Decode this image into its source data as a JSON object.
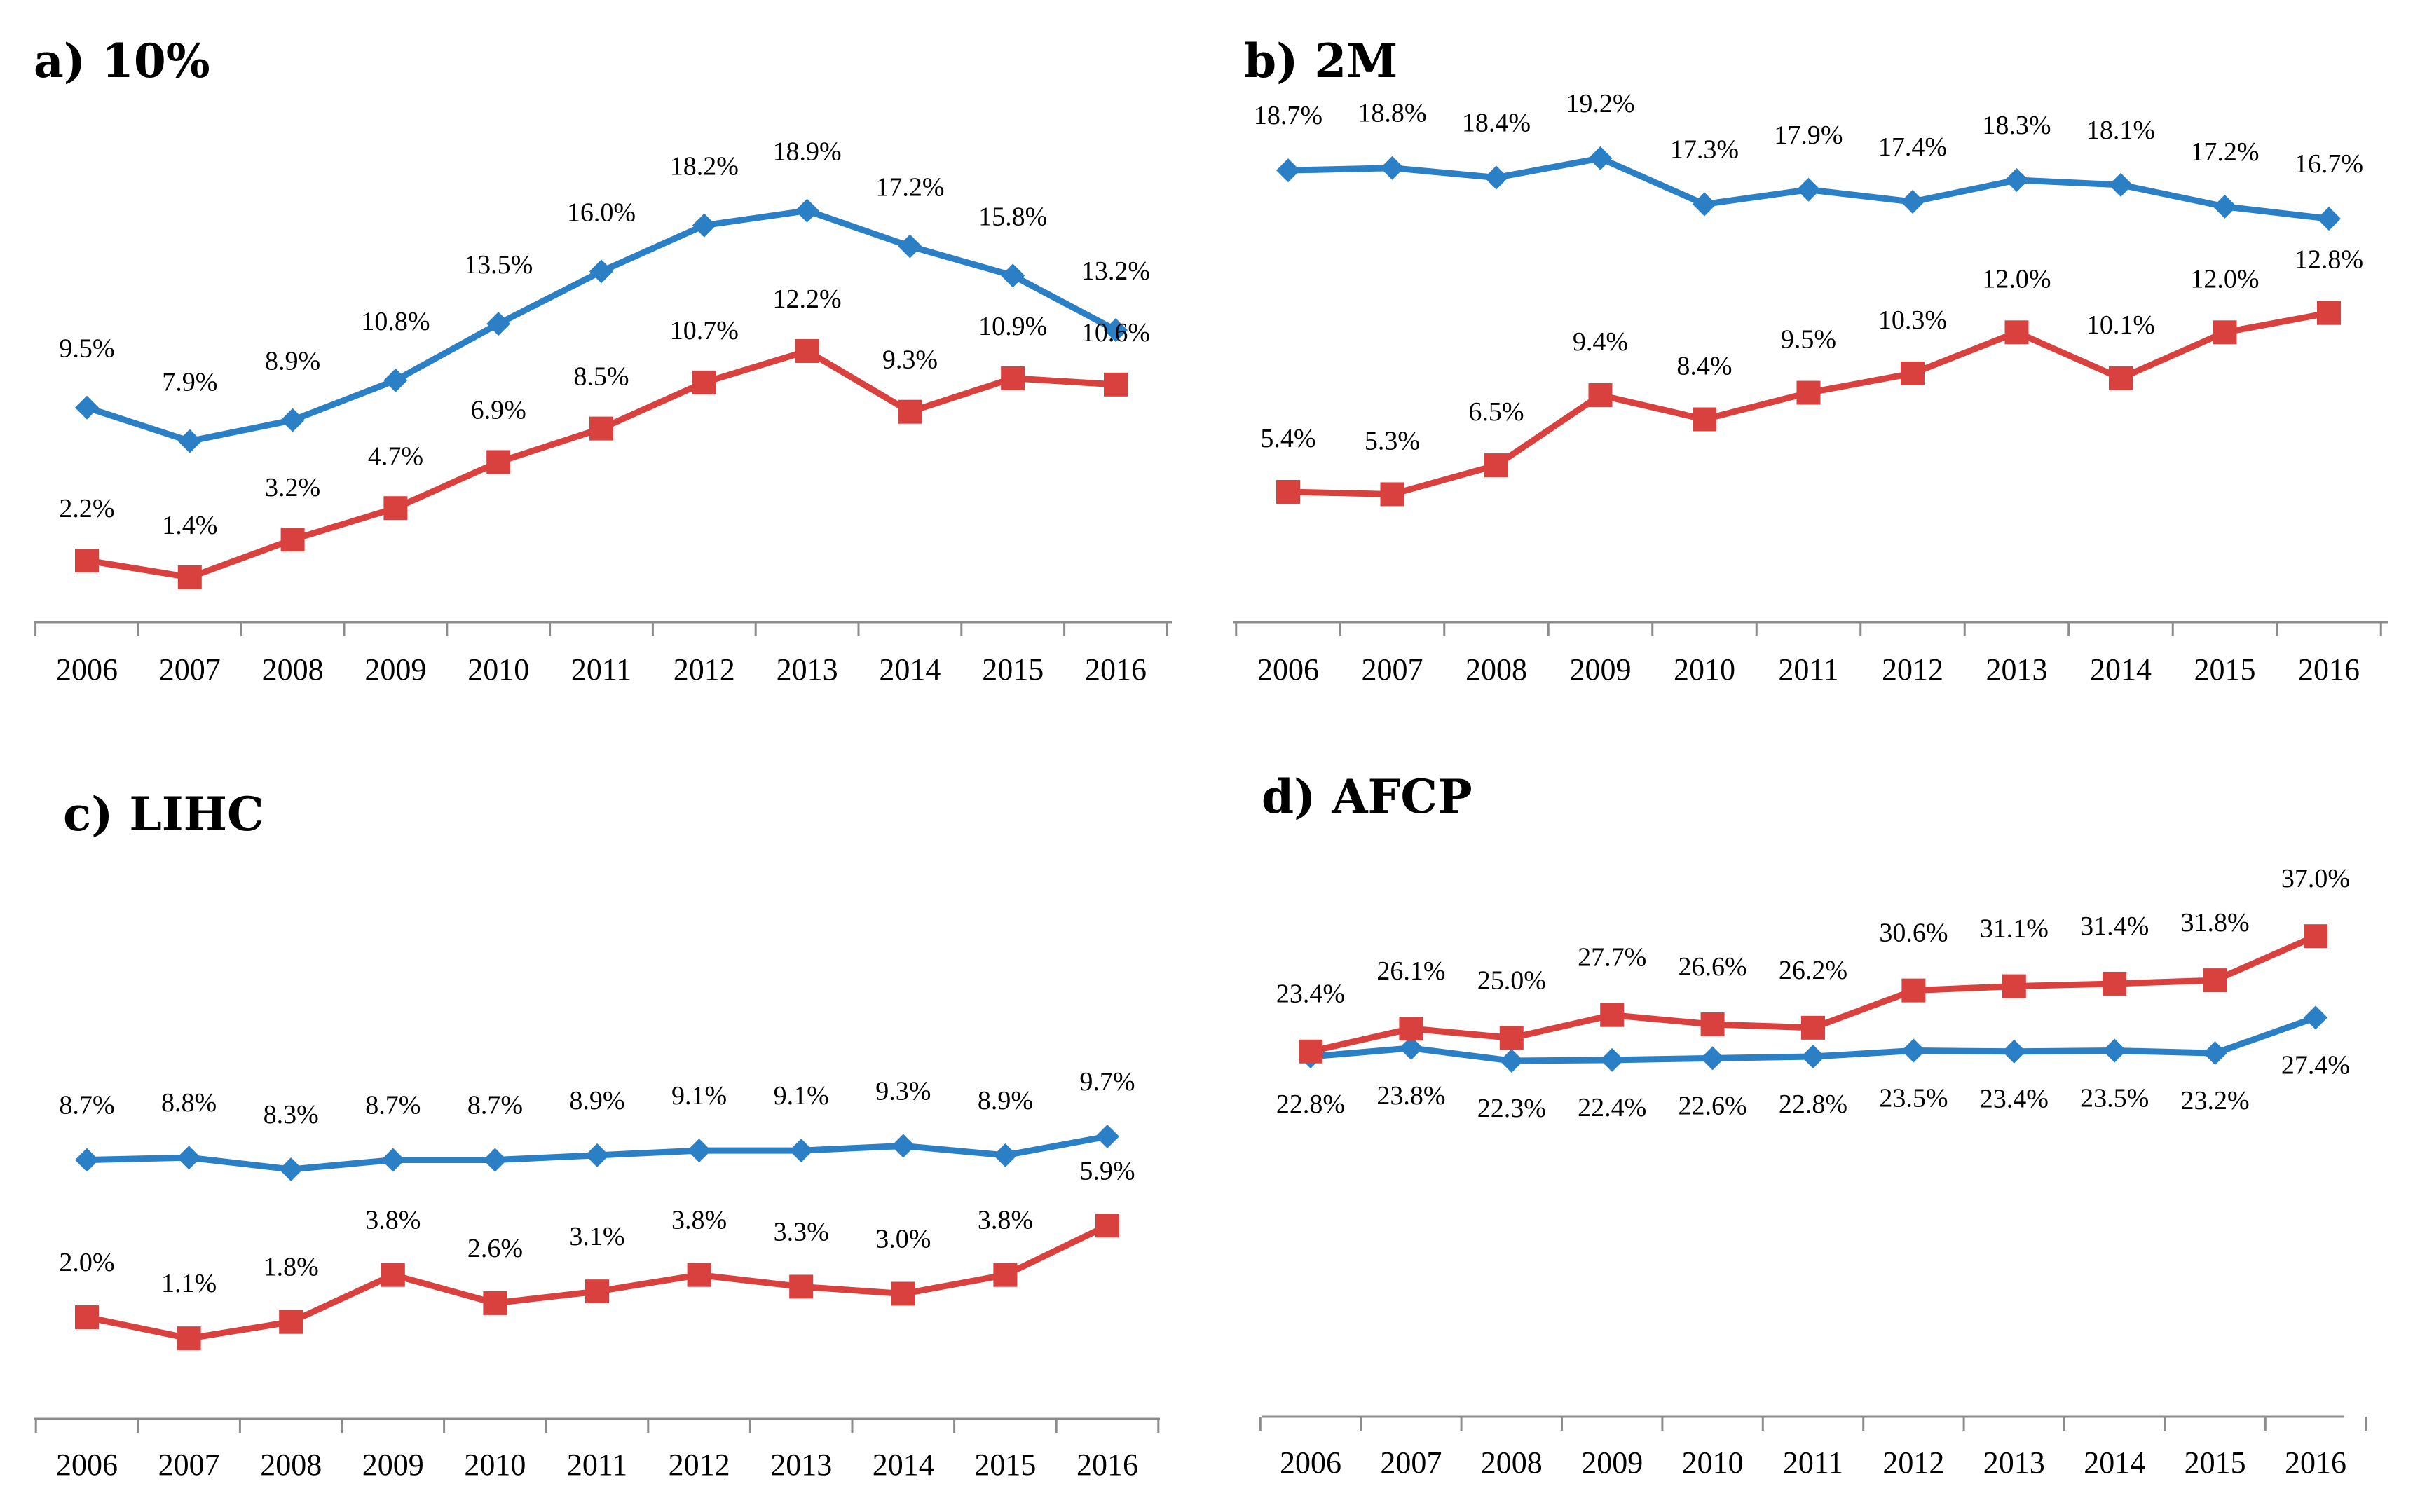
{
  "chart_data": [
    {
      "type": "line",
      "title": "a) 10%",
      "categories": [
        "2006",
        "2007",
        "2008",
        "2009",
        "2010",
        "2011",
        "2012",
        "2013",
        "2014",
        "2015",
        "2016"
      ],
      "series": [
        {
          "name": "blue",
          "color": "#2a7fc5",
          "marker": "diamond",
          "values": [
            9.5,
            7.9,
            8.9,
            10.8,
            13.5,
            16.0,
            18.2,
            18.9,
            17.2,
            15.8,
            13.2
          ],
          "labels": [
            "9.5%",
            "7.9%",
            "8.9%",
            "10.8%",
            "13.5%",
            "16.0%",
            "18.2%",
            "18.9%",
            "17.2%",
            "15.8%",
            "13.2%"
          ]
        },
        {
          "name": "red",
          "color": "#d9413f",
          "marker": "square",
          "values": [
            2.2,
            1.4,
            3.2,
            4.7,
            6.9,
            8.5,
            10.7,
            12.2,
            9.3,
            10.9,
            10.6
          ],
          "labels": [
            "2.2%",
            "1.4%",
            "3.2%",
            "4.7%",
            "6.9%",
            "8.5%",
            "10.7%",
            "12.2%",
            "9.3%",
            "10.9%",
            "10.6%"
          ]
        }
      ]
    },
    {
      "type": "line",
      "title": "b) 2M",
      "categories": [
        "2006",
        "2007",
        "2008",
        "2009",
        "2010",
        "2011",
        "2012",
        "2013",
        "2014",
        "2015",
        "2016"
      ],
      "series": [
        {
          "name": "blue",
          "color": "#2a7fc5",
          "marker": "diamond",
          "values": [
            18.7,
            18.8,
            18.4,
            19.2,
            17.3,
            17.9,
            17.4,
            18.3,
            18.1,
            17.2,
            16.7
          ],
          "labels": [
            "18.7%",
            "18.8%",
            "18.4%",
            "19.2%",
            "17.3%",
            "17.9%",
            "17.4%",
            "18.3%",
            "18.1%",
            "17.2%",
            "16.7%"
          ]
        },
        {
          "name": "red",
          "color": "#d9413f",
          "marker": "square",
          "values": [
            5.4,
            5.3,
            6.5,
            9.4,
            8.4,
            9.5,
            10.3,
            12.0,
            10.1,
            12.0,
            12.8
          ],
          "labels": [
            "5.4%",
            "5.3%",
            "6.5%",
            "9.4%",
            "8.4%",
            "9.5%",
            "10.3%",
            "12.0%",
            "10.1%",
            "12.0%",
            "12.8%"
          ]
        }
      ]
    },
    {
      "type": "line",
      "title": "c) LIHC",
      "categories": [
        "2006",
        "2007",
        "2008",
        "2009",
        "2010",
        "2011",
        "2012",
        "2013",
        "2014",
        "2015",
        "2016"
      ],
      "series": [
        {
          "name": "blue",
          "color": "#2a7fc5",
          "marker": "diamond",
          "values": [
            8.7,
            8.8,
            8.3,
            8.7,
            8.7,
            8.9,
            9.1,
            9.1,
            9.3,
            8.9,
            9.7
          ],
          "labels": [
            "8.7%",
            "8.8%",
            "8.3%",
            "8.7%",
            "8.7%",
            "8.9%",
            "9.1%",
            "9.1%",
            "9.3%",
            "8.9%",
            "9.7%"
          ]
        },
        {
          "name": "red",
          "color": "#d9413f",
          "marker": "square",
          "values": [
            2.0,
            1.1,
            1.8,
            3.8,
            2.6,
            3.1,
            3.8,
            3.3,
            3.0,
            3.8,
            5.9
          ],
          "labels": [
            "2.0%",
            "1.1%",
            "1.8%",
            "3.8%",
            "2.6%",
            "3.1%",
            "3.8%",
            "3.3%",
            "3.0%",
            "3.8%",
            "5.9%"
          ]
        }
      ]
    },
    {
      "type": "line",
      "title": "d) AFCP",
      "categories": [
        "2006",
        "2007",
        "2008",
        "2009",
        "2010",
        "2011",
        "2012",
        "2013",
        "2014",
        "2015",
        "2016"
      ],
      "series": [
        {
          "name": "blue",
          "color": "#2a7fc5",
          "marker": "diamond",
          "values": [
            22.8,
            23.8,
            22.3,
            22.4,
            22.6,
            22.8,
            23.5,
            23.4,
            23.5,
            23.2,
            27.4
          ],
          "labels": [
            "22.8%",
            "23.8%",
            "22.3%",
            "22.4%",
            "22.6%",
            "22.8%",
            "23.5%",
            "23.4%",
            "23.5%",
            "23.2%",
            "27.4%"
          ]
        },
        {
          "name": "red",
          "color": "#d9413f",
          "marker": "square",
          "values": [
            23.4,
            26.1,
            25.0,
            27.7,
            26.6,
            26.2,
            30.6,
            31.1,
            31.4,
            31.8,
            37.0
          ],
          "labels": [
            "23.4%",
            "26.1%",
            "25.0%",
            "27.7%",
            "26.6%",
            "26.2%",
            "30.6%",
            "31.1%",
            "31.4%",
            "31.8%",
            "37.0%"
          ]
        }
      ]
    }
  ]
}
